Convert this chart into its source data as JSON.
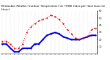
{
  "title": "Milwaukee Weather Outdoor Temperature (vs) THSW Index per Hour (Last 24 Hours)",
  "hours": [
    0,
    1,
    2,
    3,
    4,
    5,
    6,
    7,
    8,
    9,
    10,
    11,
    12,
    13,
    14,
    15,
    16,
    17,
    18,
    19,
    20,
    21,
    22,
    23
  ],
  "temp": [
    14,
    14,
    8,
    3,
    3,
    8,
    8,
    8,
    14,
    14,
    20,
    26,
    28,
    30,
    28,
    24,
    22,
    20,
    20,
    20,
    22,
    24,
    26,
    26
  ],
  "thsw": [
    18,
    18,
    14,
    8,
    8,
    14,
    30,
    38,
    42,
    46,
    48,
    50,
    54,
    52,
    48,
    42,
    34,
    28,
    22,
    20,
    22,
    24,
    34,
    36
  ],
  "temp_color": "#0000dd",
  "thsw_color": "#dd0000",
  "bg_color": "#ffffff",
  "grid_color": "#999999",
  "ylim": [
    0,
    60
  ],
  "ytick_vals": [
    10,
    20,
    30,
    40,
    50,
    60
  ],
  "ytick_labels": [
    "10",
    "20",
    "30",
    "40",
    "50",
    "60"
  ],
  "title_fontsize": 2.8,
  "tick_fontsize": 2.5,
  "line_lw_temp": 1.5,
  "line_lw_thsw": 0.8,
  "marker_size": 1.2
}
